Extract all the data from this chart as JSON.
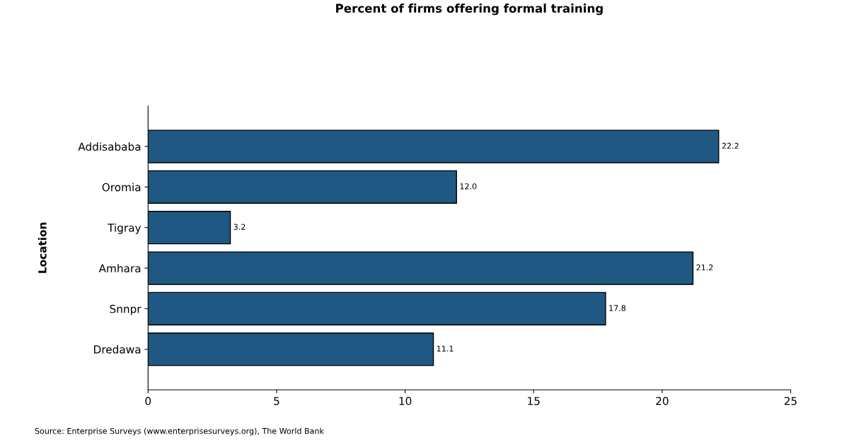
{
  "chart_data": {
    "type": "bar",
    "orientation": "horizontal",
    "title": "Percent of firms offering formal training",
    "ylabel": "Location",
    "categories": [
      "Addisababa",
      "Oromia",
      "Tigray",
      "Amhara",
      "Snnpr",
      "Dredawa"
    ],
    "values": [
      22.2,
      12.0,
      3.2,
      21.2,
      17.8,
      11.1
    ],
    "value_labels": [
      "22.2",
      "12.0",
      "3.2",
      "21.2",
      "17.8",
      "11.1"
    ],
    "color": "#1f5882",
    "xlim": [
      0,
      25
    ],
    "xticks": [
      0,
      5,
      10,
      15,
      20,
      25
    ],
    "grid": false,
    "legend": false,
    "annotations": [
      "Source: Enterprise Surveys (www.enterprisesurveys.org), The World Bank"
    ]
  }
}
